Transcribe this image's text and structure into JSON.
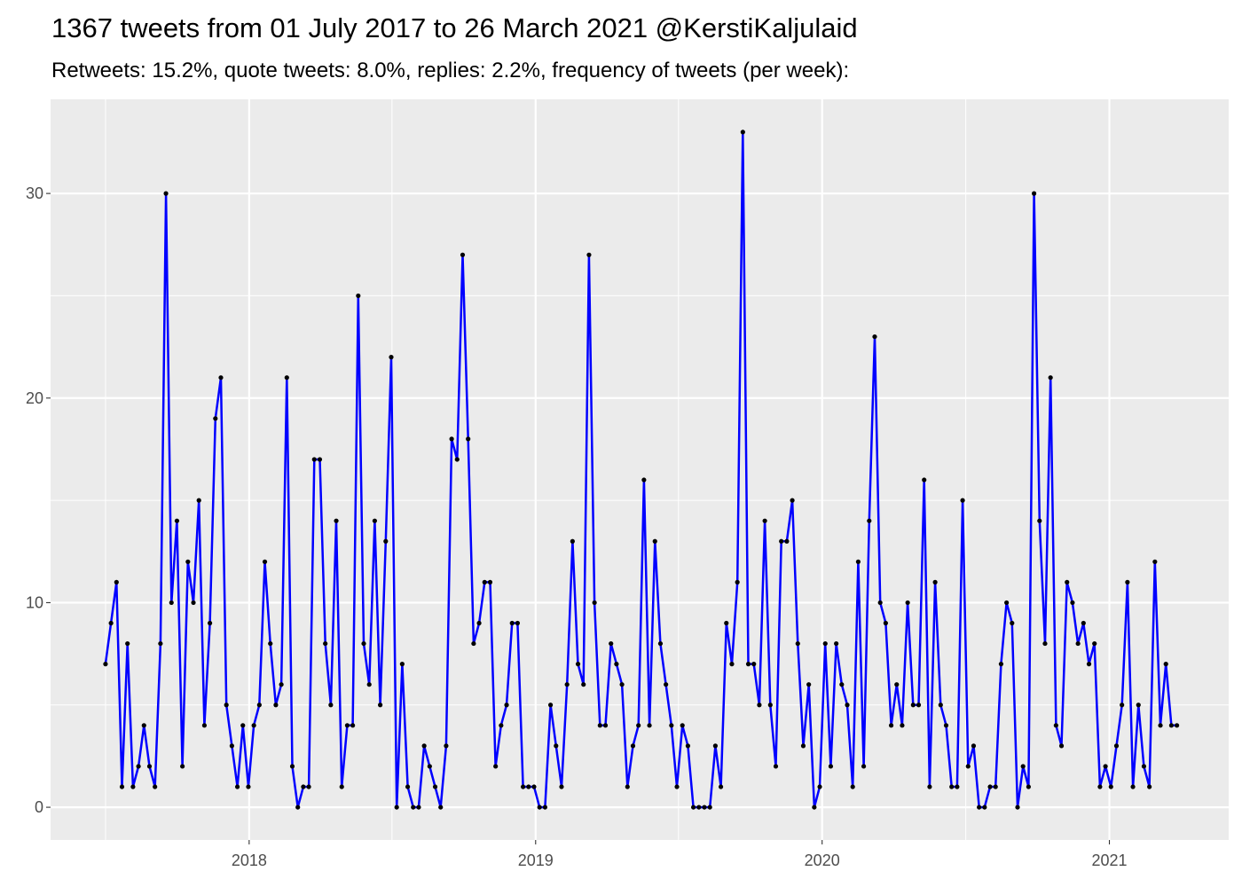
{
  "chart_data": {
    "type": "line",
    "title": "1367 tweets from 01 July 2017 to 26 March 2021 @KerstiKaljulaid",
    "subtitle": "Retweets: 15.2%, quote tweets: 8.0%, replies: 2.2%, frequency of tweets (per week):",
    "xlabel": "",
    "ylabel": "",
    "x_start": "2017-07-02",
    "x_step_days": 7,
    "xlim": [
      "2017-04-23",
      "2021-06-02"
    ],
    "ylim": [
      -1.6,
      34.6
    ],
    "x_ticks": [
      "2018",
      "2019",
      "2020",
      "2021"
    ],
    "y_ticks": [
      "0",
      "10",
      "20",
      "30"
    ],
    "grid": true,
    "line_color": "#0000FF",
    "point_color": "#000000",
    "panel_color": "#EBEBEB",
    "values": [
      7,
      9,
      11,
      1,
      8,
      1,
      2,
      4,
      2,
      1,
      8,
      30,
      10,
      14,
      2,
      12,
      10,
      15,
      4,
      9,
      19,
      21,
      5,
      3,
      1,
      4,
      1,
      4,
      5,
      12,
      8,
      5,
      6,
      21,
      2,
      0,
      1,
      1,
      17,
      17,
      8,
      5,
      14,
      1,
      4,
      4,
      25,
      8,
      6,
      14,
      5,
      13,
      22,
      0,
      7,
      1,
      0,
      0,
      3,
      2,
      1,
      0,
      3,
      18,
      17,
      27,
      18,
      8,
      9,
      11,
      11,
      2,
      4,
      5,
      9,
      9,
      1,
      1,
      1,
      0,
      0,
      5,
      3,
      1,
      6,
      13,
      7,
      6,
      27,
      10,
      4,
      4,
      8,
      7,
      6,
      1,
      3,
      4,
      16,
      4,
      13,
      8,
      6,
      4,
      1,
      4,
      3,
      0,
      0,
      0,
      0,
      3,
      1,
      9,
      7,
      11,
      33,
      7,
      7,
      5,
      14,
      5,
      2,
      13,
      13,
      15,
      8,
      3,
      6,
      0,
      1,
      8,
      2,
      8,
      6,
      5,
      1,
      12,
      2,
      14,
      23,
      10,
      9,
      4,
      6,
      4,
      10,
      5,
      5,
      16,
      1,
      11,
      5,
      4,
      1,
      1,
      15,
      2,
      3,
      0,
      0,
      1,
      1,
      7,
      10,
      9,
      0,
      2,
      1,
      30,
      14,
      8,
      21,
      4,
      3,
      11,
      10,
      8,
      9,
      7,
      8,
      1,
      2,
      1,
      3,
      5,
      11,
      1,
      5,
      2,
      1,
      12,
      4,
      7,
      4,
      4
    ]
  }
}
